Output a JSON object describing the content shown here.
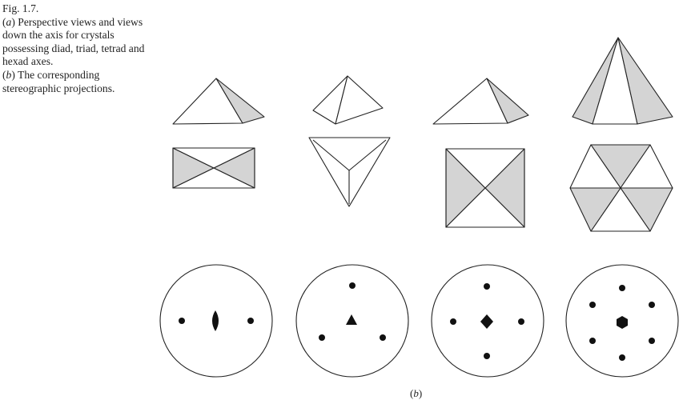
{
  "caption": {
    "fig_number": "Fig. 1.7.",
    "part_a_label": "a",
    "part_a_text": " Perspective views and views down the axis for crystals possessing diad, triad, tetrad and hexad axes.",
    "part_b_label": "b",
    "part_b_text": " The corresponding stereographic projections."
  },
  "panel_label": "b",
  "colors": {
    "line": "#222222",
    "shade": "#d4d4d4",
    "paper": "#ffffff"
  },
  "projections": [
    {
      "axis": "diad",
      "symbol": "lens-icon",
      "poles": 2
    },
    {
      "axis": "triad",
      "symbol": "triangle-icon",
      "poles": 3
    },
    {
      "axis": "tetrad",
      "symbol": "square-icon",
      "poles": 4
    },
    {
      "axis": "hexad",
      "symbol": "hexagon-icon",
      "poles": 6
    }
  ]
}
